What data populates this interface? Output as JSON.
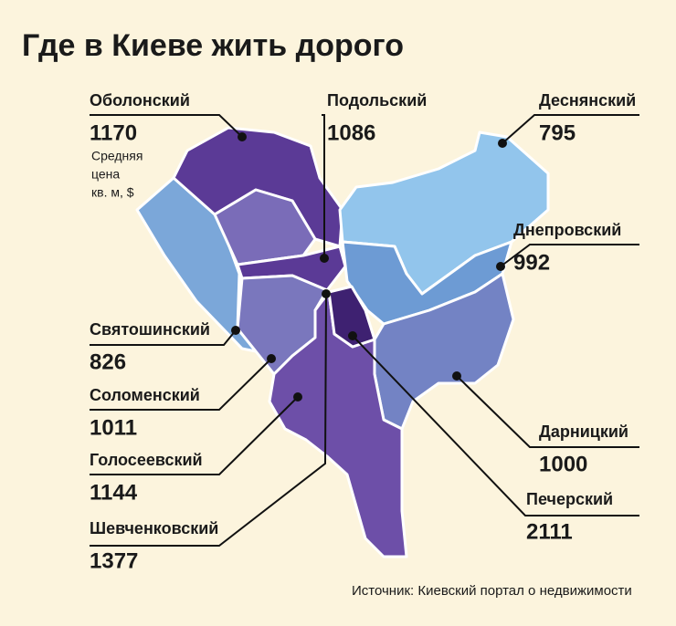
{
  "title": "Где в Киеве жить дорого",
  "districts": [
    {
      "name": "Оболонский",
      "price": 1170
    },
    {
      "name": "Подольский",
      "price": 1086
    },
    {
      "name": "Деснянский",
      "price": 795
    },
    {
      "name": "Днепровский",
      "price": 992
    },
    {
      "name": "Святошинский",
      "price": 826
    },
    {
      "name": "Соломенский",
      "price": 1011
    },
    {
      "name": "Голосеевский",
      "price": 1144
    },
    {
      "name": "Шевченковский",
      "price": 1377
    },
    {
      "name": "Дарницкий",
      "price": 1000
    },
    {
      "name": "Печерский",
      "price": 2111
    }
  ],
  "note": [
    "Средняя",
    "цена",
    "кв. м, $"
  ],
  "source": "Источник: Киевский портал о недвижимости"
}
